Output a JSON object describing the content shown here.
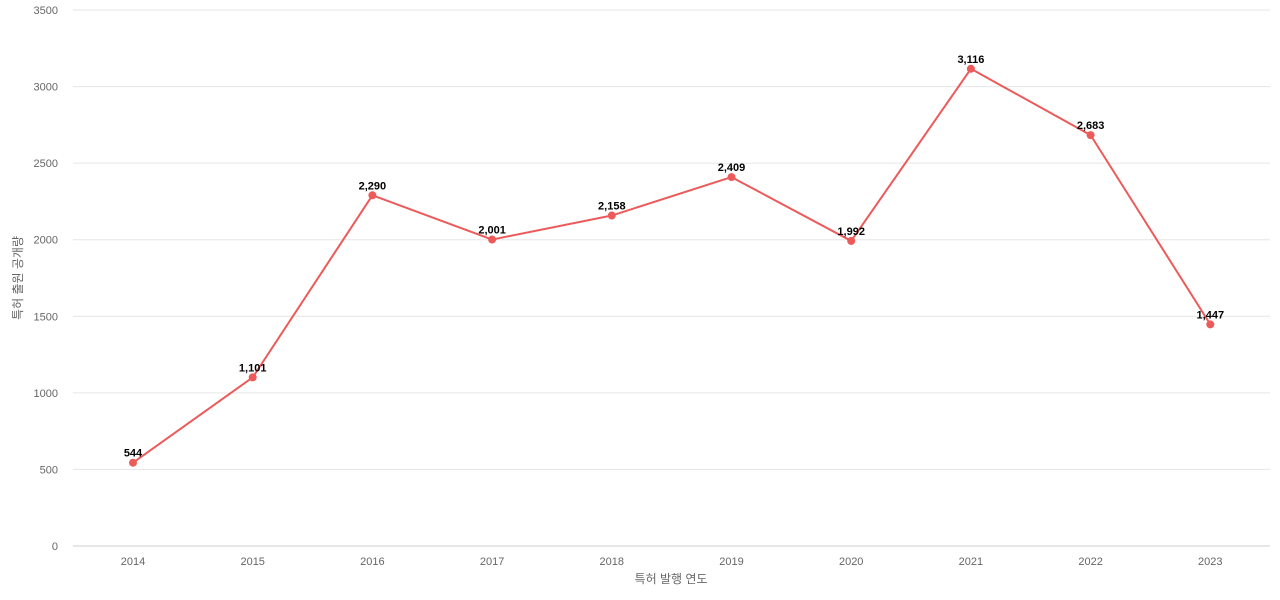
{
  "chart_data": {
    "type": "line",
    "title": "",
    "xlabel": "특허 발행 연도",
    "ylabel": "특허 출원 공개량",
    "categories": [
      "2014",
      "2015",
      "2016",
      "2017",
      "2018",
      "2019",
      "2020",
      "2021",
      "2022",
      "2023"
    ],
    "series": [
      {
        "values": [
          544,
          1101,
          2290,
          2001,
          2158,
          2409,
          1992,
          3116,
          2683,
          1447
        ],
        "data_labels": [
          "544",
          "1,101",
          "2,290",
          "2,001",
          "2,158",
          "2,409",
          "1,992",
          "3,116",
          "2,683",
          "1,447"
        ],
        "color": "#ec5a5a"
      }
    ],
    "ylim": [
      0,
      3500
    ],
    "y_ticks": [
      "0",
      "500",
      "1000",
      "1500",
      "2000",
      "2500",
      "3000",
      "3500"
    ],
    "grid": true,
    "legend": "none"
  }
}
